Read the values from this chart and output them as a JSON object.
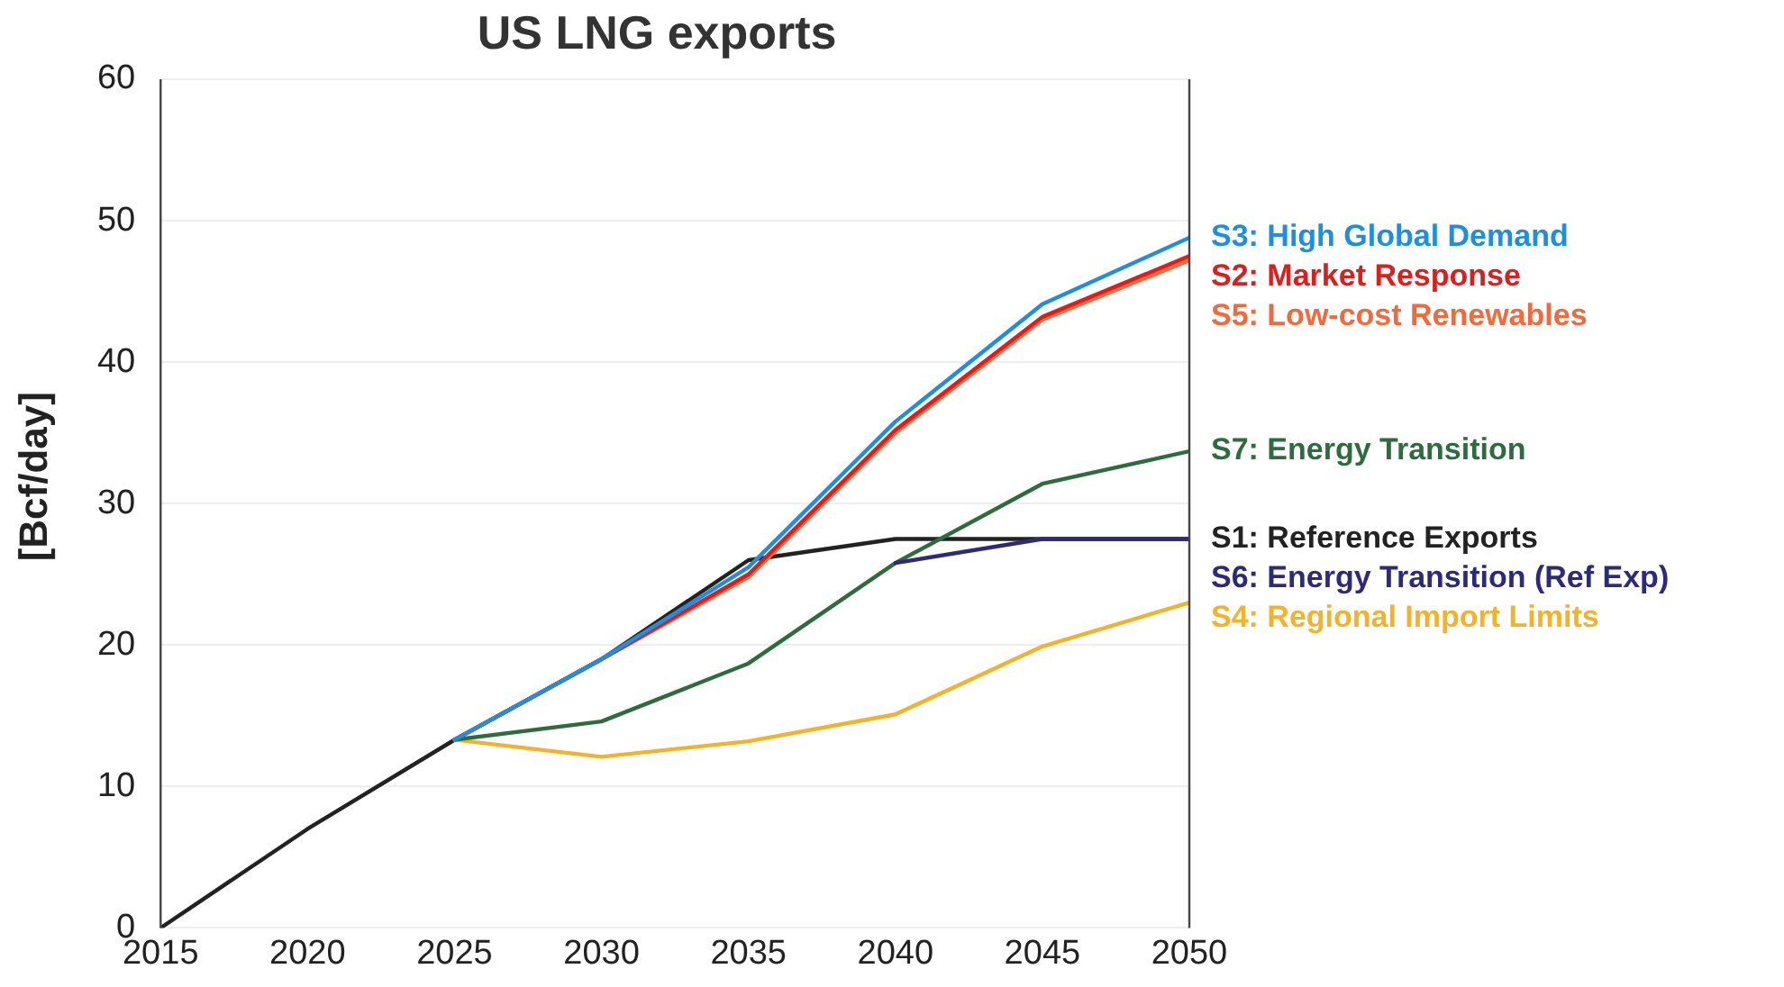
{
  "chart_data": {
    "type": "line",
    "title": "US LNG exports",
    "ylabel": "[Bcf/day]",
    "x": [
      2015,
      2020,
      2025,
      2030,
      2035,
      2040,
      2045,
      2050
    ],
    "xlim": [
      2015,
      2050
    ],
    "xticks": [
      2015,
      2020,
      2025,
      2030,
      2035,
      2040,
      2045,
      2050
    ],
    "ylim": [
      0,
      60
    ],
    "yticks": [
      0,
      10,
      20,
      30,
      40,
      50,
      60
    ],
    "grid": "y",
    "legend": false,
    "marker": "none",
    "line_style": "solid",
    "series": [
      {
        "name": "S3: High Global Demand",
        "color": "#1e8fe0",
        "values": [
          null,
          null,
          13.3,
          19,
          25.5,
          35.8,
          44.1,
          48.8
        ]
      },
      {
        "name": "S2: Market Response",
        "color": "#d9201e",
        "values": [
          null,
          null,
          13.3,
          19,
          25,
          35.2,
          43.2,
          47.5
        ]
      },
      {
        "name": "S5: Low-cost Renewables",
        "color": "#f2693c",
        "values": [
          null,
          null,
          13.3,
          19,
          24.8,
          35,
          43,
          47.2
        ]
      },
      {
        "name": "S7: Energy Transition",
        "color": "#2e6b3e",
        "values": [
          null,
          null,
          13.3,
          14.6,
          18.7,
          25.8,
          31.4,
          33.7
        ]
      },
      {
        "name": "S1: Reference Exports",
        "color": "#222222",
        "values": [
          0,
          7,
          13.3,
          19,
          26,
          27.5,
          27.5,
          27.5
        ]
      },
      {
        "name": "S6: Energy Transition (Ref Exp)",
        "color": "#2e2a7a",
        "values": [
          null,
          null,
          null,
          null,
          null,
          25.8,
          27.5,
          27.5
        ]
      },
      {
        "name": "S4: Regional Import Limits",
        "color": "#f3b328",
        "values": [
          null,
          null,
          13.3,
          12.1,
          13.2,
          15.1,
          19.9,
          23
        ]
      }
    ]
  }
}
